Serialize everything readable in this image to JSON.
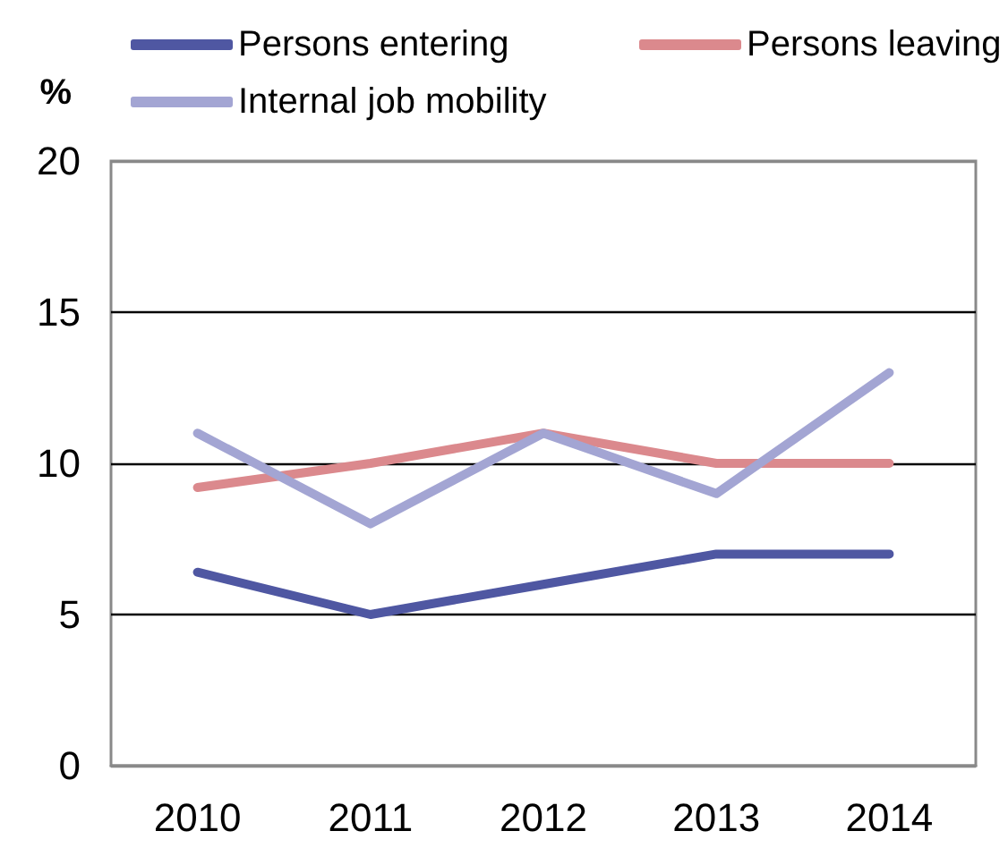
{
  "chart_data": {
    "type": "line",
    "ylabel": "%",
    "categories": [
      "2010",
      "2011",
      "2012",
      "2013",
      "2014"
    ],
    "series": [
      {
        "name": "Persons entering",
        "color": "#4f57a2",
        "values": [
          6.4,
          5,
          6,
          7,
          7
        ]
      },
      {
        "name": "Persons leaving",
        "color": "#db898d",
        "values": [
          9.2,
          10,
          11,
          10,
          10
        ]
      },
      {
        "name": "Internal job mobility",
        "color": "#a3a5d3",
        "values": [
          11,
          8,
          11,
          9,
          13
        ]
      }
    ],
    "ylim": [
      0,
      20
    ],
    "yticks": [
      0,
      5,
      10,
      15,
      20
    ],
    "grid": "y",
    "legend": "top",
    "line_style": "solid"
  }
}
